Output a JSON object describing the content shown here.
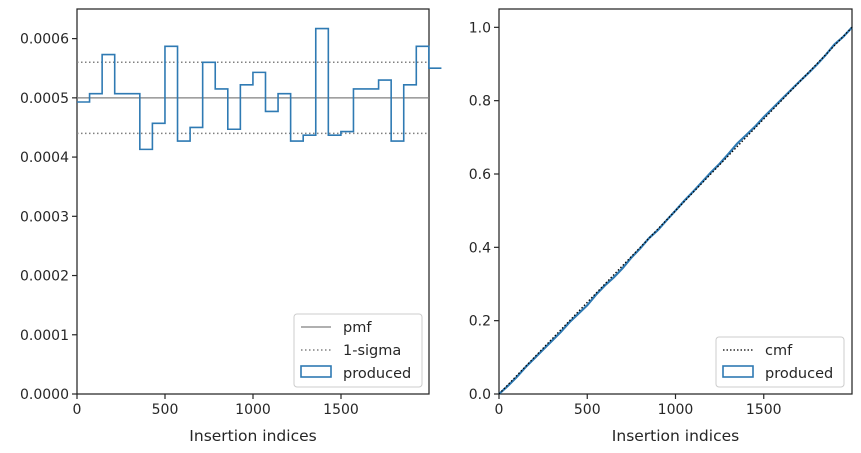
{
  "colors": {
    "produced": "#2f7ab3",
    "pmf": "#808080",
    "sigma": "#808080",
    "cmf": "#000000",
    "axes": "#262626",
    "background": "#ffffff"
  },
  "chart_data": [
    {
      "type": "histogram-step",
      "xlabel": "Insertion indices",
      "ylabel": "",
      "title": "",
      "xlim": [
        0,
        2000
      ],
      "ylim": [
        0,
        0.00065
      ],
      "xticks": [
        0,
        500,
        1000,
        1500
      ],
      "xtick_labels": [
        "0",
        "500",
        "1000",
        "1500"
      ],
      "yticks": [
        0,
        0.0001,
        0.0002,
        0.0003,
        0.0004,
        0.0005,
        0.0006
      ],
      "ytick_labels": [
        "0.0000",
        "0.0001",
        "0.0002",
        "0.0003",
        "0.0004",
        "0.0005",
        "0.0006"
      ],
      "bin_width": 71.4,
      "bin_edges_start": 0,
      "values": [
        0.000493,
        0.000507,
        0.000573,
        0.000507,
        0.000507,
        0.000413,
        0.000457,
        0.000587,
        0.000427,
        0.00045,
        0.00056,
        0.000515,
        0.000447,
        0.000522,
        0.000543,
        0.000477,
        0.000507,
        0.000427,
        0.000437,
        0.000617,
        0.000437,
        0.000443,
        0.000515,
        0.000515,
        0.00053,
        0.000427,
        0.000522,
        0.000587,
        0.00055
      ],
      "pmf": 0.0005,
      "sigma_band": [
        0.00044,
        0.00056
      ],
      "legend": [
        "pmf",
        "1-sigma",
        "produced"
      ],
      "legend_position": "lower-right",
      "grid": false
    },
    {
      "type": "line",
      "xlabel": "Insertion indices",
      "ylabel": "",
      "title": "",
      "xlim": [
        0,
        2000
      ],
      "ylim": [
        0,
        1.05
      ],
      "xticks": [
        0,
        500,
        1000,
        1500
      ],
      "xtick_labels": [
        "0",
        "500",
        "1000",
        "1500"
      ],
      "yticks": [
        0,
        0.2,
        0.4,
        0.6,
        0.8,
        1.0
      ],
      "ytick_labels": [
        "0.0",
        "0.2",
        "0.4",
        "0.6",
        "0.8",
        "1.0"
      ],
      "series": [
        {
          "name": "cmf",
          "style": "dotted",
          "x": [
            0,
            2000
          ],
          "y": [
            0,
            1.0
          ]
        },
        {
          "name": "produced",
          "style": "solid",
          "x": [
            0,
            50,
            100,
            150,
            200,
            250,
            300,
            350,
            400,
            450,
            500,
            550,
            600,
            650,
            700,
            750,
            800,
            850,
            900,
            950,
            1000,
            1050,
            1100,
            1150,
            1200,
            1250,
            1300,
            1350,
            1400,
            1450,
            1500,
            1550,
            1600,
            1650,
            1700,
            1750,
            1800,
            1850,
            1900,
            1950,
            2000
          ],
          "y": [
            0,
            0.022,
            0.046,
            0.073,
            0.097,
            0.121,
            0.145,
            0.169,
            0.196,
            0.219,
            0.242,
            0.271,
            0.296,
            0.318,
            0.343,
            0.372,
            0.397,
            0.425,
            0.447,
            0.474,
            0.5,
            0.527,
            0.552,
            0.578,
            0.604,
            0.628,
            0.655,
            0.683,
            0.706,
            0.729,
            0.755,
            0.779,
            0.803,
            0.827,
            0.851,
            0.874,
            0.898,
            0.924,
            0.953,
            0.974,
            1.0
          ]
        }
      ],
      "legend": [
        "cmf",
        "produced"
      ],
      "legend_position": "lower-right",
      "grid": false
    }
  ]
}
